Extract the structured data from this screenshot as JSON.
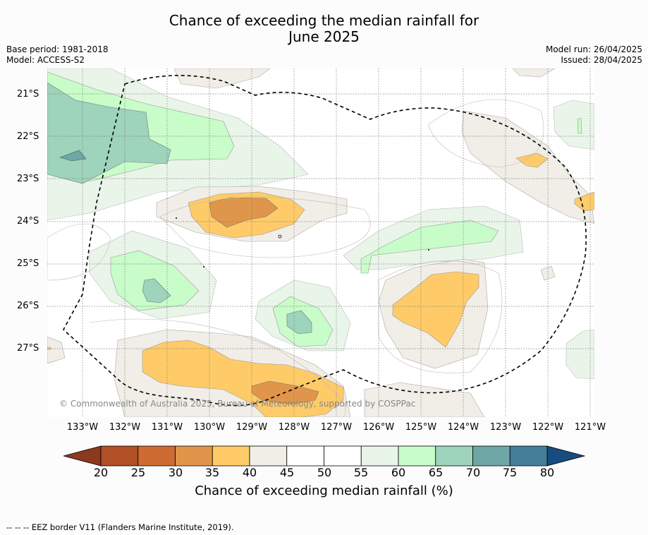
{
  "title": {
    "line1": "Chance of exceeding the median rainfall for",
    "line2": "June 2025"
  },
  "meta": {
    "base_period": "Base period: 1981-2018",
    "model": "Model: ACCESS-S2",
    "model_run": "Model run: 26/04/2025",
    "issued": "Issued: 28/04/2025"
  },
  "map": {
    "lat_labels": [
      "21°S",
      "22°S",
      "23°S",
      "24°S",
      "25°S",
      "26°S",
      "27°S"
    ],
    "lon_labels": [
      "133°W",
      "132°W",
      "131°W",
      "130°W",
      "129°W",
      "128°W",
      "127°W",
      "126°W",
      "125°W",
      "124°W",
      "123°W",
      "122°W",
      "121°W"
    ],
    "credit": "© Commonwealth of Australia 2025, Bureau of Meteorology, supported by COSPPac"
  },
  "colorbar": {
    "label": "Chance of exceeding median rainfall (%)",
    "ticks": [
      "20",
      "25",
      "30",
      "35",
      "40",
      "45",
      "50",
      "55",
      "60",
      "65",
      "70",
      "75",
      "80"
    ],
    "colors": [
      "#8b3a1f",
      "#b14f27",
      "#cd6b33",
      "#e0964a",
      "#fecb68",
      "#f1ede7",
      "#ffffff",
      "#ffffff",
      "#eaf5ea",
      "#c8fcc8",
      "#9ed3bc",
      "#6ea7a5",
      "#437f99",
      "#184b80"
    ]
  },
  "footer": "--  --  -- EEZ border V11 (Flanders Marine Institute, 2019)."
}
